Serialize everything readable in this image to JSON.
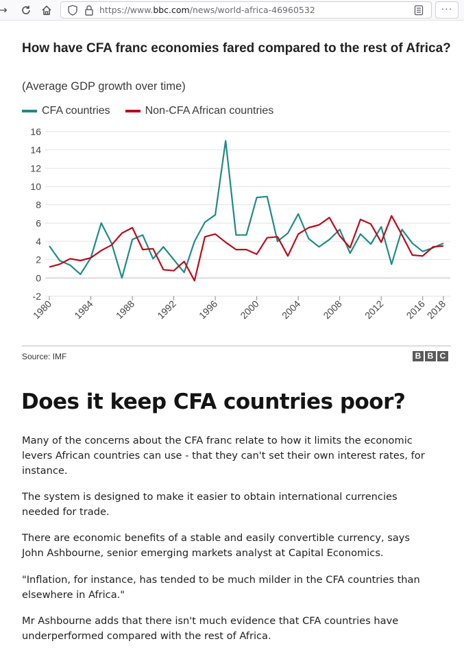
{
  "browser": {
    "back_icon": "back-arrow-icon",
    "reload_icon": "reload-icon",
    "home_icon": "home-icon",
    "url_scheme": "https://www.",
    "url_domain": "bbc.com",
    "url_path": "/news/world-africa-46960532",
    "menu_label": "···"
  },
  "chart": {
    "title": "How have CFA franc economies fared compared to the rest of Africa?",
    "subtitle": "(Average GDP growth over time)",
    "source": "Source: IMF",
    "logo_letters": [
      "B",
      "B",
      "C"
    ]
  },
  "chart_data": {
    "type": "line",
    "title": "How have CFA franc economies fared compared to the rest of Africa?",
    "subtitle": "(Average GDP growth over time)",
    "x": [
      1980,
      1981,
      1982,
      1983,
      1984,
      1985,
      1986,
      1987,
      1988,
      1989,
      1990,
      1991,
      1992,
      1993,
      1994,
      1995,
      1996,
      1997,
      1998,
      1999,
      2000,
      2001,
      2002,
      2003,
      2004,
      2005,
      2006,
      2007,
      2008,
      2009,
      2010,
      2011,
      2012,
      2013,
      2014,
      2015,
      2016,
      2017,
      2018
    ],
    "x_tick_labels": [
      "1980",
      "1984",
      "1988",
      "1992",
      "1996",
      "2000",
      "2004",
      "2008",
      "2012",
      "2016",
      "2018"
    ],
    "y_ticks": [
      -2,
      0,
      2,
      4,
      6,
      8,
      10,
      12,
      14,
      16
    ],
    "ylim": [
      -2,
      16
    ],
    "grid": true,
    "legend_position": "top-left",
    "series": [
      {
        "name": "CFA countries",
        "color": "#1f8a85",
        "values": [
          3.5,
          1.9,
          1.4,
          0.4,
          2.2,
          6.0,
          3.8,
          0.0,
          4.2,
          4.7,
          2.1,
          3.4,
          2.0,
          0.6,
          4.0,
          6.1,
          6.9,
          15.0,
          4.7,
          4.7,
          8.8,
          8.9,
          4.0,
          4.9,
          7.0,
          4.3,
          3.4,
          4.2,
          5.3,
          2.7,
          4.8,
          3.7,
          5.6,
          1.5,
          5.3,
          3.8,
          2.9,
          3.3,
          3.8
        ]
      },
      {
        "name": "Non-CFA African countries",
        "color": "#b80c1b",
        "values": [
          1.2,
          1.5,
          2.1,
          1.9,
          2.2,
          3.0,
          3.6,
          4.9,
          5.5,
          3.1,
          3.2,
          0.9,
          0.8,
          1.8,
          -0.3,
          4.5,
          4.8,
          3.9,
          3.1,
          3.1,
          2.6,
          4.4,
          4.5,
          2.4,
          4.8,
          5.5,
          5.8,
          6.6,
          4.6,
          3.3,
          6.4,
          5.9,
          3.9,
          6.8,
          4.7,
          2.5,
          2.4,
          3.4,
          3.5
        ]
      }
    ]
  },
  "article": {
    "headline": "Does it keep CFA countries poor?",
    "paragraphs": [
      "Many of the concerns about the CFA franc relate to how it limits the economic levers African countries can use - that they can't set their own interest rates, for instance.",
      "The system is designed to make it easier to obtain international currencies needed for trade.",
      "There are economic benefits of a stable and easily convertible currency, says John Ashbourne, senior emerging markets analyst at Capital Economics.",
      "\"Inflation, for instance, has tended to be much milder in the CFA countries than elsewhere in Africa.\"",
      "Mr Ashbourne adds that there isn't much evidence that CFA countries have underperformed compared with the rest of Africa."
    ]
  }
}
